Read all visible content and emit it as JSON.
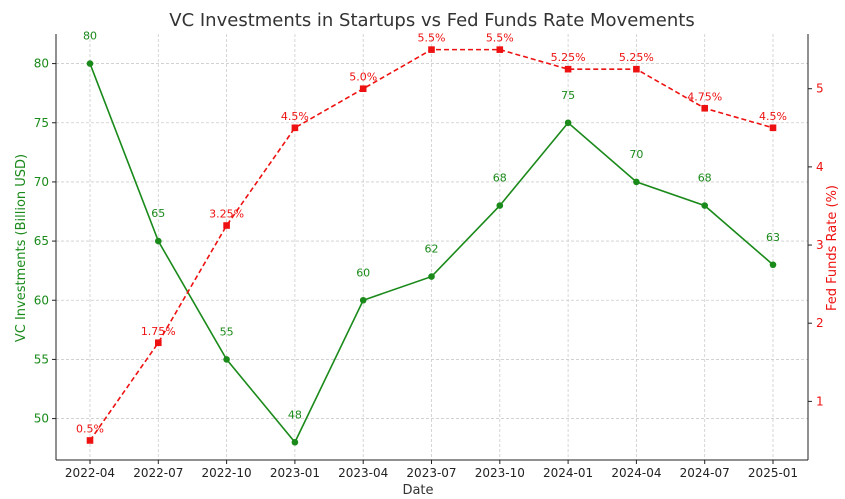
{
  "chart_data": {
    "type": "line",
    "title": "VC Investments in Startups vs Fed Funds Rate Movements",
    "xlabel": "Date",
    "ylabel_left": "VC Investments (Billion USD)",
    "ylabel_right": "Fed Funds Rate (%)",
    "x": [
      "2022-04",
      "2022-07",
      "2022-10",
      "2023-01",
      "2023-04",
      "2023-07",
      "2023-10",
      "2024-01",
      "2024-04",
      "2024-07",
      "2025-01"
    ],
    "x_ticks": [
      "2022-04",
      "2022-07",
      "2022-10",
      "2023-01",
      "2023-04",
      "2023-07",
      "2023-10",
      "2024-01",
      "2024-04",
      "2024-07",
      "2025-01"
    ],
    "ylim_left": [
      46.5,
      82.5
    ],
    "ylim_right": [
      0.25,
      5.7
    ],
    "yticks_left": [
      50,
      55,
      60,
      65,
      70,
      75,
      80
    ],
    "yticks_right": [
      1,
      2,
      3,
      4,
      5
    ],
    "grid": true,
    "series": [
      {
        "axis": "left",
        "color": "#1a8a1a",
        "marker": "circle",
        "line_style": "solid",
        "values": [
          80,
          65,
          55,
          48,
          60,
          62,
          68,
          75,
          70,
          68,
          63
        ],
        "labels": [
          "80",
          "65",
          "55",
          "48",
          "60",
          "62",
          "68",
          "75",
          "70",
          "68",
          "63"
        ]
      },
      {
        "axis": "right",
        "color": "#ee1111",
        "marker": "square",
        "line_style": "dashed",
        "values": [
          0.5,
          1.75,
          3.25,
          4.5,
          5.0,
          5.5,
          5.5,
          5.25,
          5.25,
          4.75,
          4.5
        ],
        "labels": [
          "0.5%",
          "1.75%",
          "3.25%",
          "4.5%",
          "5.0%",
          "5.5%",
          "5.5%",
          "5.25%",
          "5.25%",
          "4.75%",
          "4.5%"
        ]
      }
    ]
  }
}
